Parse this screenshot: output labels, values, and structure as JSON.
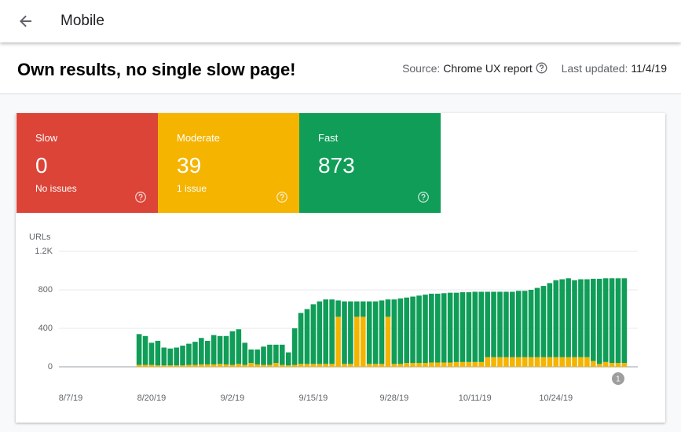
{
  "header": {
    "title": "Mobile"
  },
  "page": {
    "title": "Own results, no single slow page!",
    "source_label": "Source:",
    "source": "Chrome UX report",
    "updated_label": "Last updated:",
    "updated": "11/4/19"
  },
  "cards": [
    {
      "label": "Slow",
      "value": 0,
      "note": "No issues"
    },
    {
      "label": "Moderate",
      "value": 39,
      "note": "1 issue"
    },
    {
      "label": "Fast",
      "value": 873
    }
  ],
  "chart_data": {
    "type": "bar",
    "stacked": true,
    "y_label": "URLs",
    "ylim": [
      0,
      1200
    ],
    "yticks": [
      0,
      400,
      800,
      {
        "value": 1200,
        "label": "1.2K"
      }
    ],
    "grid": true,
    "categories": [
      "8/7/19",
      null,
      null,
      null,
      null,
      null,
      null,
      null,
      null,
      null,
      null,
      null,
      null,
      "8/20/19",
      null,
      null,
      null,
      null,
      null,
      null,
      null,
      null,
      null,
      null,
      null,
      null,
      "9/2/19",
      null,
      null,
      null,
      null,
      null,
      null,
      null,
      null,
      null,
      null,
      null,
      null,
      "9/15/19",
      null,
      null,
      null,
      null,
      null,
      null,
      null,
      null,
      null,
      null,
      null,
      null,
      "9/28/19",
      null,
      null,
      null,
      null,
      null,
      null,
      null,
      null,
      null,
      null,
      null,
      null,
      "10/11/19",
      null,
      null,
      null,
      null,
      null,
      null,
      null,
      null,
      null,
      null,
      null,
      null,
      "10/24/19",
      null,
      null,
      null,
      null,
      null,
      null,
      null,
      null,
      null,
      null,
      null
    ],
    "series": [
      {
        "color": "#f4b400",
        "values": [
          null,
          null,
          null,
          null,
          null,
          null,
          null,
          null,
          null,
          null,
          null,
          20,
          20,
          20,
          15,
          15,
          15,
          15,
          15,
          20,
          20,
          25,
          25,
          25,
          30,
          25,
          20,
          30,
          20,
          40,
          25,
          20,
          20,
          40,
          20,
          15,
          20,
          30,
          30,
          30,
          30,
          30,
          30,
          520,
          30,
          30,
          520,
          520,
          30,
          30,
          30,
          520,
          30,
          30,
          40,
          40,
          40,
          40,
          45,
          45,
          45,
          45,
          50,
          50,
          50,
          50,
          50,
          100,
          100,
          100,
          100,
          100,
          100,
          100,
          100,
          100,
          100,
          100,
          100,
          100,
          100,
          100,
          100,
          100,
          60,
          30,
          50,
          40,
          40,
          40
        ]
      },
      {
        "color": "#0f9d58",
        "values": [
          null,
          null,
          null,
          null,
          null,
          null,
          null,
          null,
          null,
          null,
          null,
          320,
          300,
          230,
          255,
          185,
          175,
          185,
          205,
          220,
          240,
          275,
          245,
          305,
          290,
          295,
          350,
          360,
          230,
          140,
          155,
          190,
          210,
          190,
          210,
          135,
          380,
          530,
          570,
          620,
          650,
          670,
          670,
          170,
          650,
          650,
          160,
          160,
          650,
          650,
          660,
          180,
          670,
          680,
          680,
          690,
          700,
          710,
          715,
          715,
          720,
          725,
          720,
          725,
          725,
          730,
          730,
          680,
          680,
          680,
          680,
          680,
          690,
          690,
          700,
          720,
          740,
          770,
          800,
          810,
          820,
          800,
          810,
          810,
          855,
          885,
          870,
          880,
          880,
          880
        ]
      }
    ],
    "annotations": [
      {
        "text": "1",
        "at": 88
      }
    ]
  }
}
